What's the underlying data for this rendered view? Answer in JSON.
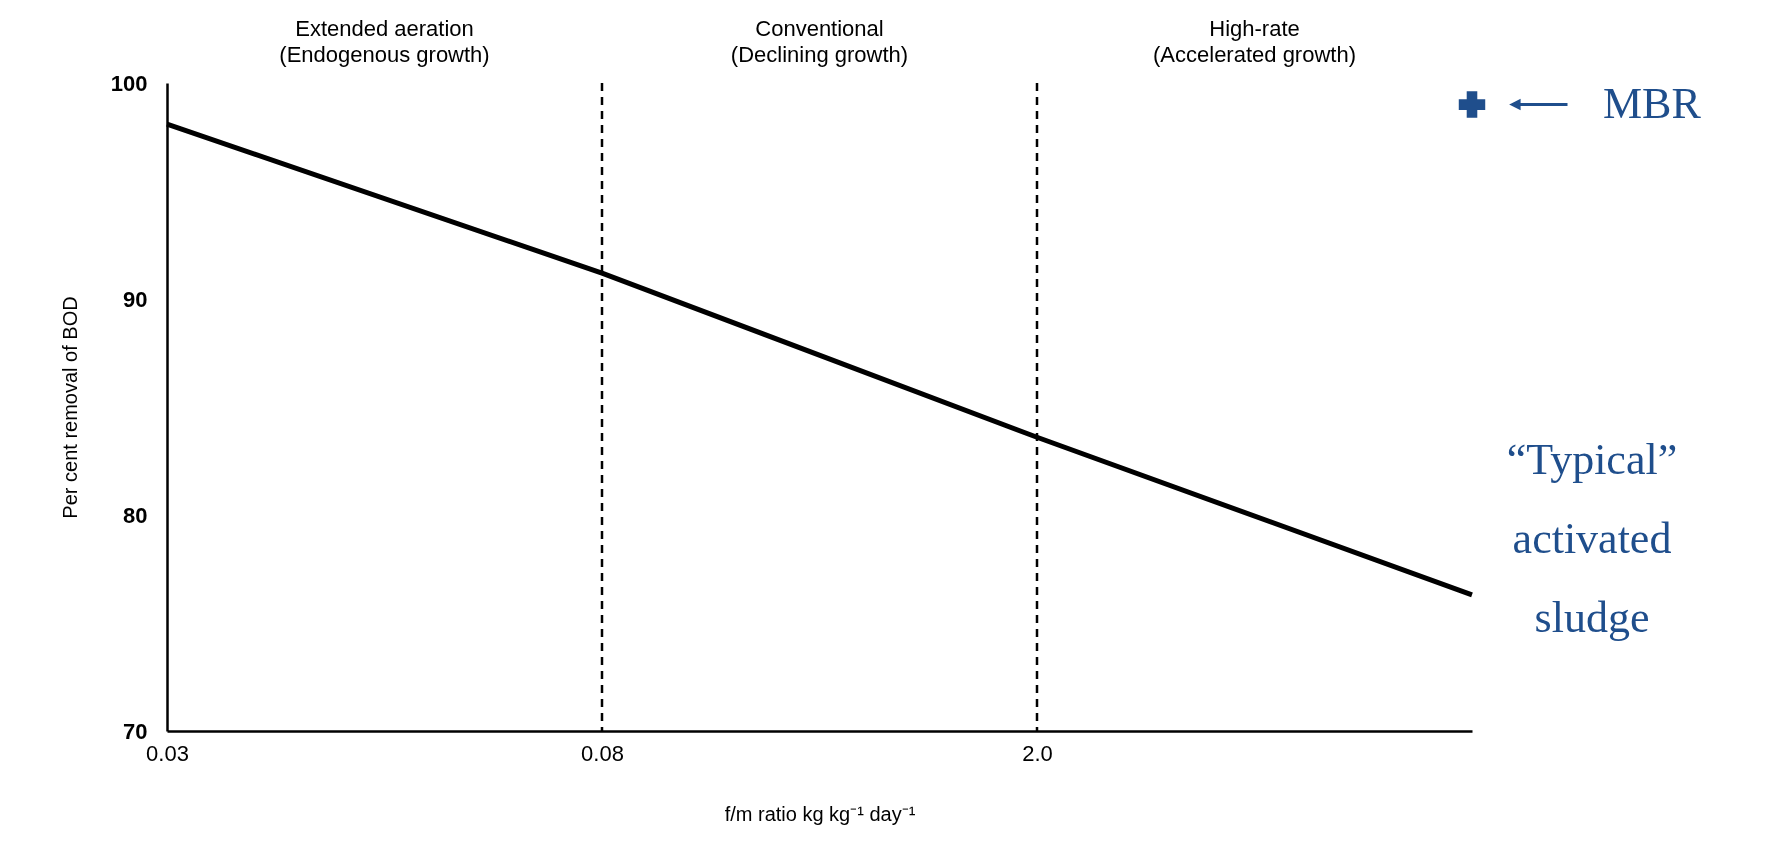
{
  "chart_data": {
    "type": "line",
    "xlabel": "f/m ratio kg kg⁻¹ day⁻¹",
    "ylabel": "Per cent removal of BOD",
    "categories": [
      "0.03",
      "0.08",
      "2.0",
      null
    ],
    "ylim": [
      70,
      100
    ],
    "yticks": [
      70,
      80,
      90,
      100
    ],
    "grid": false,
    "series": [
      {
        "color": "#000000",
        "values": [
          98.1,
          91.2,
          83.6,
          76.3
        ]
      },
      {
        "type": "scatter",
        "color": "#1f4e8c",
        "marker": "cross",
        "values": [
          null,
          null,
          null,
          99.0
        ]
      }
    ],
    "ref_lines": [
      {
        "axis": "x",
        "value": "0.08",
        "line_style": "dashed",
        "color": "#000000"
      },
      {
        "axis": "x",
        "value": "2.0",
        "line_style": "dashed",
        "color": "#000000"
      }
    ],
    "annotations": [
      "Extended aeration\n(Endogenous growth)",
      "Conventional\n(Declining growth)",
      "High-rate\n(Accelerated growth)",
      "MBR",
      "“Typical”\nactivated\nsludge"
    ]
  }
}
